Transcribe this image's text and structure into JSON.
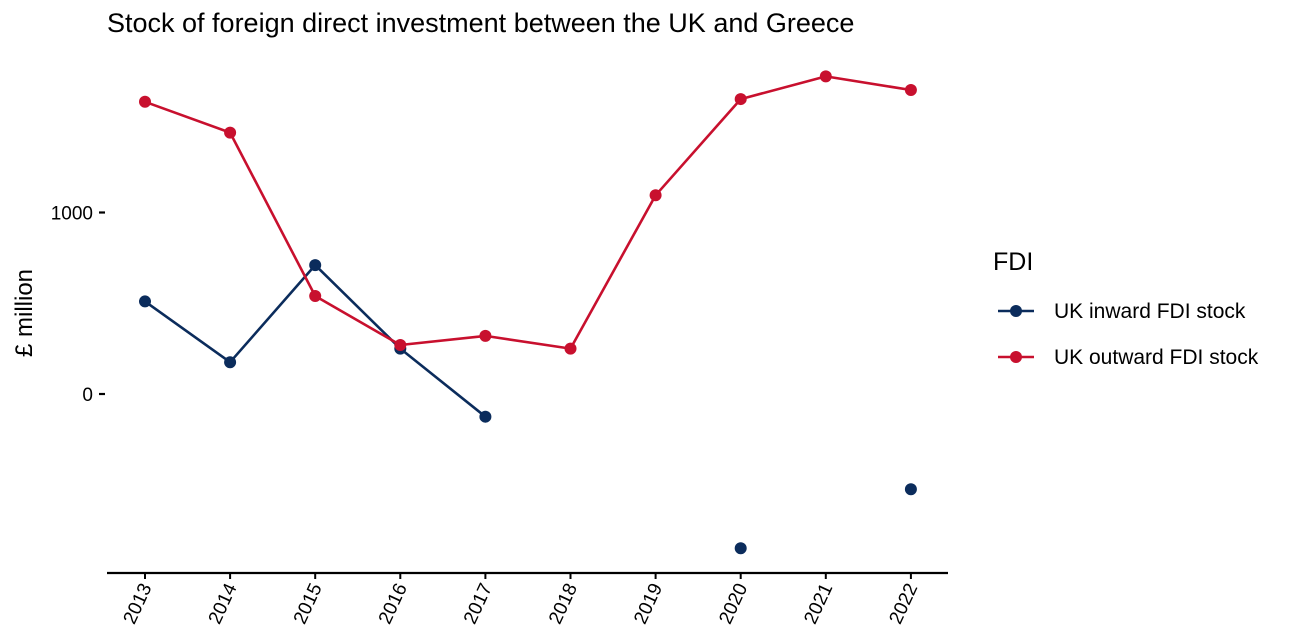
{
  "chart_data": {
    "type": "line",
    "title": "Stock of foreign direct investment between the UK and Greece",
    "xlabel": "",
    "ylabel": "£ million",
    "x": [
      "2013",
      "2014",
      "2015",
      "2016",
      "2017",
      "2018",
      "2019",
      "2020",
      "2021",
      "2022"
    ],
    "y_ticks": [
      0,
      1000
    ],
    "ylim": [
      -1000,
      1900
    ],
    "grid": false,
    "legend": {
      "title": "FDI",
      "placement": "right"
    },
    "series": [
      {
        "name": "UK inward FDI stock",
        "color": "#0b2c5c",
        "values": [
          510,
          175,
          710,
          250,
          -125,
          null,
          null,
          -850,
          null,
          -525
        ]
      },
      {
        "name": "UK outward FDI stock",
        "color": "#c8102e",
        "values": [
          1610,
          1440,
          540,
          270,
          320,
          250,
          1095,
          1625,
          1750,
          1675
        ]
      }
    ]
  }
}
